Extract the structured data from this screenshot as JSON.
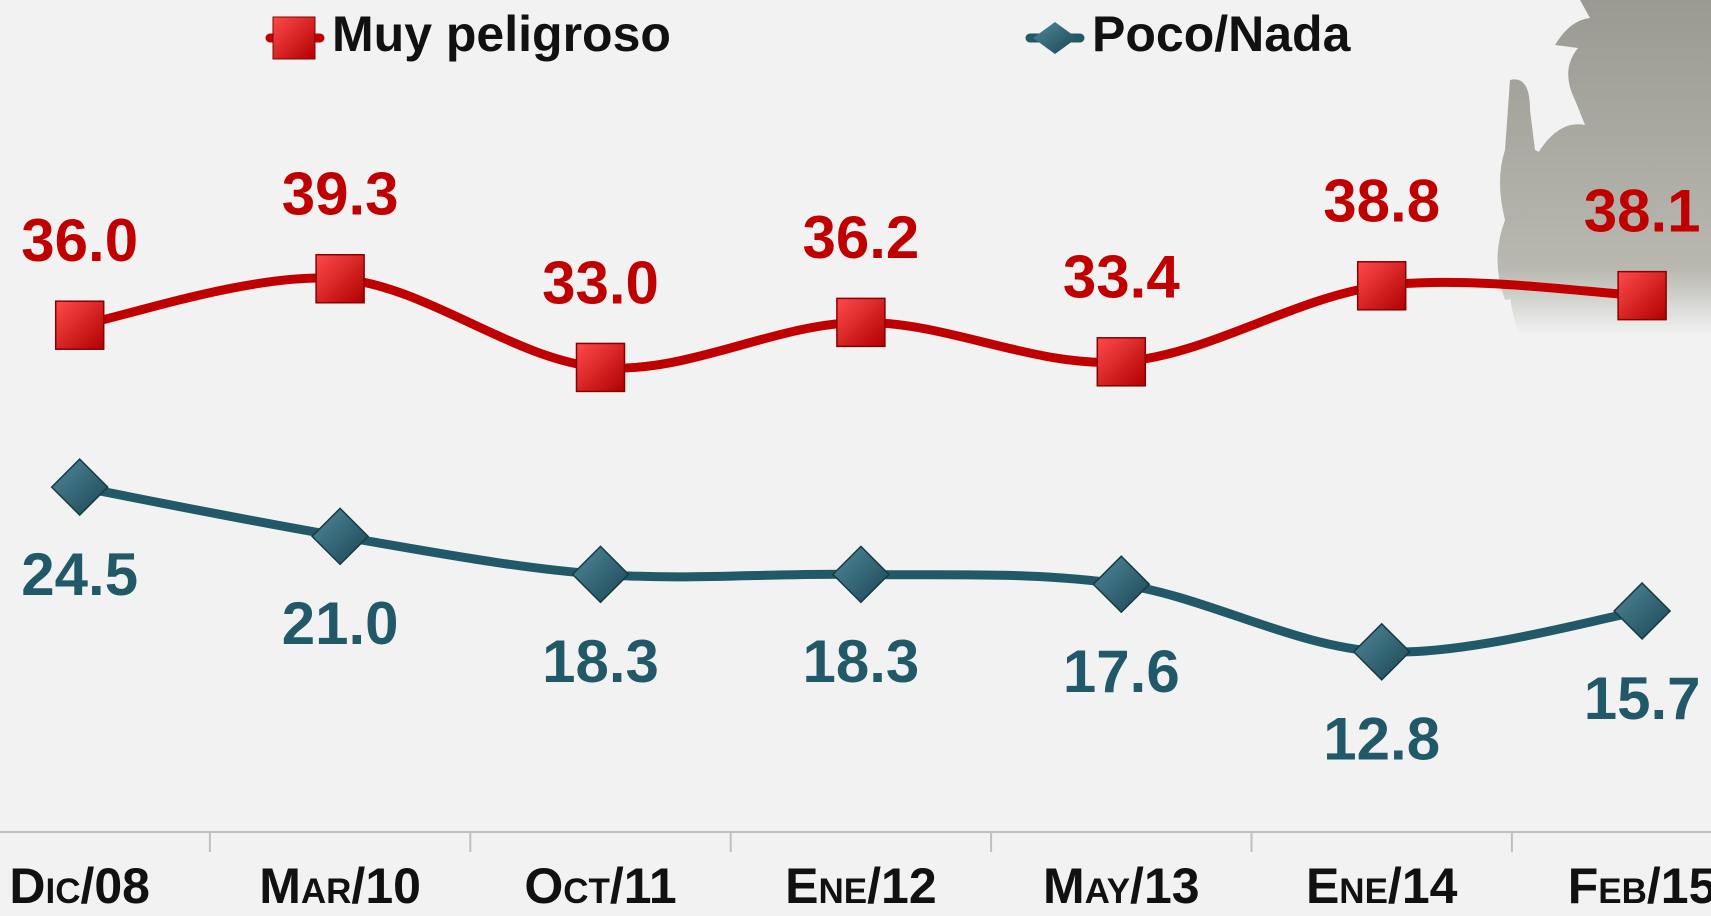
{
  "chart_data": {
    "type": "line",
    "categories": [
      "Dic/08",
      "Mar/10",
      "Oct/11",
      "Ene/12",
      "May/13",
      "Ene/14",
      "Feb/15"
    ],
    "series": [
      {
        "name": "Muy peligroso",
        "color": "#c00000",
        "marker": "square",
        "values": [
          36.0,
          39.3,
          33.0,
          36.2,
          33.4,
          38.8,
          38.1
        ],
        "value_labels": [
          "36.0",
          "39.3",
          "33.0",
          "36.2",
          "33.4",
          "38.8",
          "38.1"
        ]
      },
      {
        "name": "Poco/Nada",
        "color": "#215968",
        "marker": "diamond",
        "values": [
          24.5,
          21.0,
          18.3,
          18.3,
          17.6,
          12.8,
          15.7
        ],
        "value_labels": [
          "24.5",
          "21.0",
          "18.3",
          "18.3",
          "17.6",
          "12.8",
          "15.7"
        ]
      }
    ],
    "ylim": [
      0,
      59.1
    ],
    "grid": false,
    "legend": "top"
  }
}
